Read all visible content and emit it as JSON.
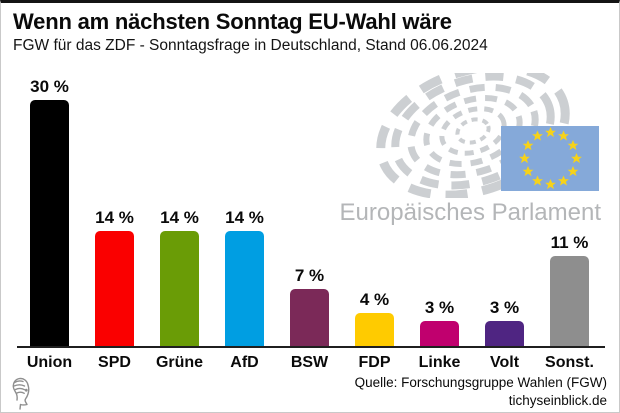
{
  "header": {
    "title": "Wenn am nächsten Sonntag EU-Wahl wäre",
    "subtitle": "FGW für das ZDF - Sonntagsfrage in Deutschland, Stand 06.06.2024"
  },
  "chart_data": {
    "type": "bar",
    "title": "Wenn am nächsten Sonntag EU-Wahl wäre",
    "subtitle": "FGW für das ZDF - Sonntagsfrage in Deutschland, Stand 06.06.2024",
    "categories": [
      "Union",
      "SPD",
      "Grüne",
      "AfD",
      "BSW",
      "FDP",
      "Linke",
      "Volt",
      "Sonst."
    ],
    "values": [
      30,
      14,
      14,
      14,
      7,
      4,
      3,
      3,
      11
    ],
    "value_labels": [
      "30 %",
      "14 %",
      "14 %",
      "14 %",
      "7 %",
      "4 %",
      "3 %",
      "3 %",
      "11 %"
    ],
    "colors": [
      "#000000",
      "#fa0000",
      "#6a9c06",
      "#009ee2",
      "#7b2958",
      "#ffcb00",
      "#c0006e",
      "#4f2582",
      "#8e8e8e"
    ],
    "unit": "%",
    "xlabel": "",
    "ylabel": "",
    "ylim": [
      0,
      32
    ],
    "grid": false,
    "legend": "none"
  },
  "ep_logo": {
    "label": "Europäisches Parlament",
    "arc_gray": "#cccfd2",
    "flag_blue": "#85a9d9",
    "star_yellow": "#f6d21a",
    "text_gray": "#b4b6b8"
  },
  "footer": {
    "source": "Quelle: Forschungsgruppe Wahlen (FGW)",
    "site": "tichyseinblick.de"
  }
}
